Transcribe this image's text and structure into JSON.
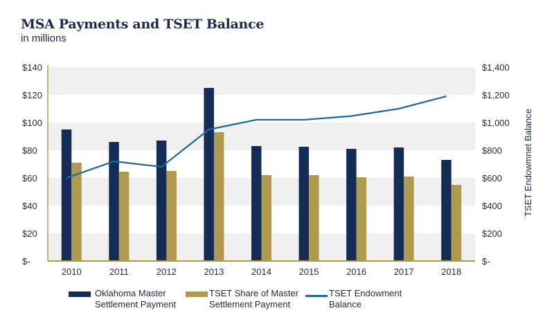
{
  "chart_data": {
    "type": "bar",
    "title": "MSA Payments and TSET Balance",
    "subtitle": "in millions",
    "categories": [
      "2010",
      "2011",
      "2012",
      "2013",
      "2014",
      "2015",
      "2016",
      "2017",
      "2018"
    ],
    "series": [
      {
        "name": "Oklahoma Master Settlement Payment",
        "kind": "bar",
        "axis": "left",
        "color": "#142c56",
        "values": [
          95,
          86,
          87,
          125,
          83,
          82.5,
          81,
          82,
          73
        ]
      },
      {
        "name": "TSET Share of Master Settlement Payment",
        "kind": "bar",
        "axis": "left",
        "color": "#b09a50",
        "values": [
          71,
          64.5,
          65,
          93,
          62,
          62,
          60.5,
          61,
          55
        ]
      },
      {
        "name": "TSET Endowment Balance",
        "kind": "line",
        "axis": "right",
        "color": "#1a6a9a",
        "values": [
          600,
          720,
          680,
          950,
          1020,
          1020,
          1047,
          1100,
          1190
        ]
      }
    ],
    "left_axis": {
      "ylim": [
        0,
        140
      ],
      "tick_labels": [
        "$-",
        "$20",
        "$40",
        "$60",
        "$80",
        "$100",
        "$120",
        "$140"
      ]
    },
    "right_axis": {
      "ylabel": "TSET Endowmnet Balance",
      "ylim": [
        0,
        1400
      ],
      "tick_labels": [
        "$-",
        "$200",
        "$400",
        "$600",
        "$800",
        "$1,000",
        "$1,200",
        "$1,400"
      ]
    },
    "legend": {
      "placement": "bottom",
      "lines": [
        [
          "Oklahoma Master",
          "Settlement Payment"
        ],
        [
          "TSET Share of Master",
          "Settlement Payment"
        ],
        [
          "TSET Endowment",
          "Balance"
        ]
      ]
    },
    "band_color": "#f0f0f0",
    "axis_color": "#b09a50"
  }
}
